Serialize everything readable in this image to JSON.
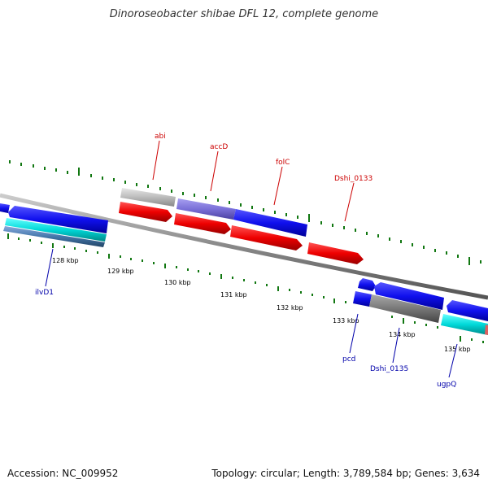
{
  "title": "Dinoroseobacter shibae DFL 12, complete genome",
  "footer": {
    "accession": "Accession: NC_009952",
    "summary": "Topology: circular; Length: 3,789,584 bp; Genes: 3,634"
  },
  "scale": {
    "ticks": [
      "128 kbp",
      "129 kbp",
      "130 kbp",
      "131 kbp",
      "132 kbp",
      "133 kbp",
      "134 kbp",
      "135 kbp"
    ]
  },
  "genes": [
    {
      "name": "ilvD1",
      "color": "#0000aa"
    },
    {
      "name": "abi",
      "color": "#cc0000"
    },
    {
      "name": "accD",
      "color": "#cc0000"
    },
    {
      "name": "folC",
      "color": "#cc0000"
    },
    {
      "name": "Dshi_0133",
      "color": "#cc0000"
    },
    {
      "name": "pcd",
      "color": "#0000aa"
    },
    {
      "name": "Dshi_0135",
      "color": "#0000aa"
    },
    {
      "name": "ugpQ",
      "color": "#0000aa"
    }
  ],
  "colors": {
    "red_feature": "#ee0000",
    "blue_feature": "#1010ee",
    "cyan_feature": "#00d8d8",
    "gray_feature": "#777777",
    "light_gray_feature": "#bbbbbb",
    "purple_feature": "#7a70d8",
    "tick_green": "#117711",
    "backbone": "#888888"
  }
}
